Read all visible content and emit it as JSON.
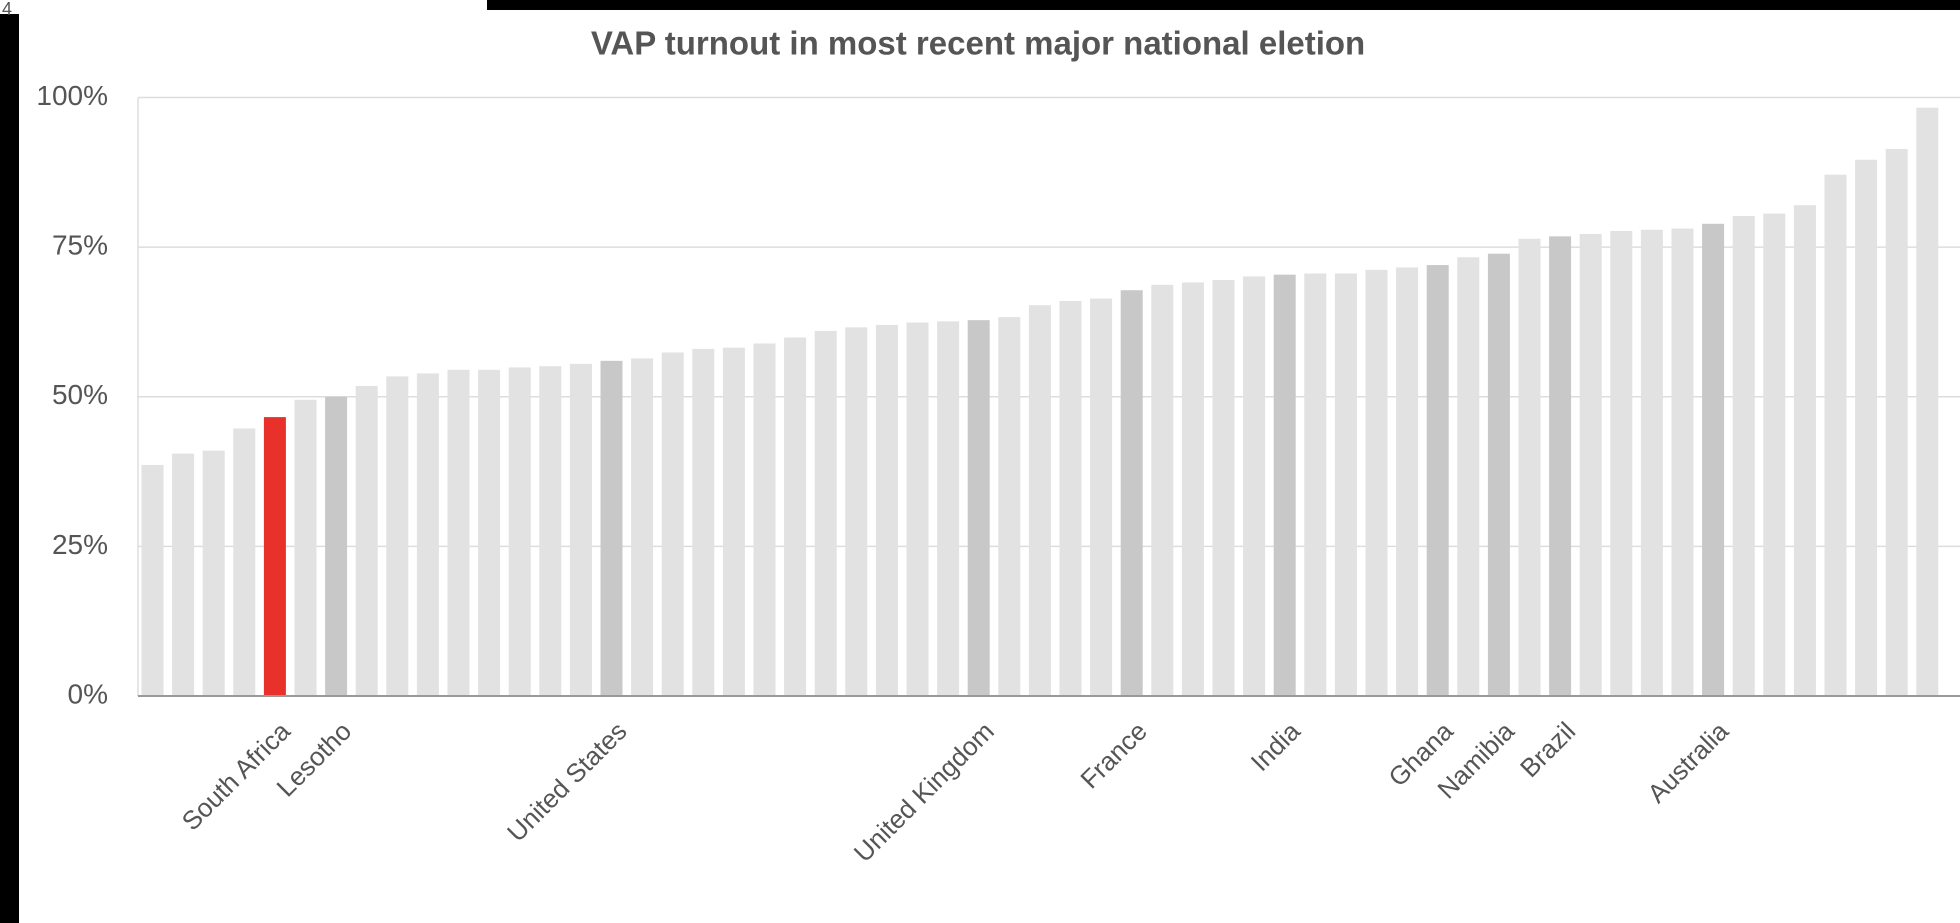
{
  "corner_text": "4",
  "chart_data": {
    "type": "bar",
    "title": "VAP turnout in most recent major national eletion",
    "categories": [
      null,
      null,
      null,
      null,
      "South Africa",
      null,
      "Lesotho",
      null,
      null,
      null,
      null,
      null,
      null,
      null,
      null,
      "United States",
      null,
      null,
      null,
      null,
      null,
      null,
      null,
      null,
      null,
      null,
      null,
      "United Kingdom",
      null,
      null,
      null,
      null,
      "France",
      null,
      null,
      null,
      null,
      "India",
      null,
      null,
      null,
      null,
      "Ghana",
      null,
      "Namibia",
      null,
      "Brazil",
      null,
      null,
      null,
      null,
      "Australia",
      null,
      null,
      null,
      null,
      null,
      null,
      null
    ],
    "values": [
      38.6,
      40.5,
      41,
      44.7,
      46.6,
      49.5,
      50,
      51.8,
      53.4,
      53.9,
      54.5,
      54.5,
      54.9,
      55.1,
      55.5,
      56,
      56.4,
      57.4,
      58,
      58.2,
      58.9,
      59.9,
      61,
      61.6,
      62,
      62.4,
      62.6,
      62.8,
      63.3,
      65.3,
      66,
      66.4,
      67.8,
      68.7,
      69.1,
      69.5,
      70.1,
      70.4,
      70.6,
      70.6,
      71.2,
      71.6,
      72,
      73.3,
      73.9,
      76.4,
      76.8,
      77.2,
      77.7,
      77.9,
      78.1,
      78.9,
      80.2,
      80.6,
      82,
      87.1,
      89.6,
      91.4,
      98.3
    ],
    "colors": [
      "#e2e2e2",
      "#e2e2e2",
      "#e2e2e2",
      "#e2e2e2",
      "#e8312a",
      "#e2e2e2",
      "#c8c8c8",
      "#e2e2e2",
      "#e2e2e2",
      "#e2e2e2",
      "#e2e2e2",
      "#e2e2e2",
      "#e2e2e2",
      "#e2e2e2",
      "#e2e2e2",
      "#c8c8c8",
      "#e2e2e2",
      "#e2e2e2",
      "#e2e2e2",
      "#e2e2e2",
      "#e2e2e2",
      "#e2e2e2",
      "#e2e2e2",
      "#e2e2e2",
      "#e2e2e2",
      "#e2e2e2",
      "#e2e2e2",
      "#c8c8c8",
      "#e2e2e2",
      "#e2e2e2",
      "#e2e2e2",
      "#e2e2e2",
      "#c8c8c8",
      "#e2e2e2",
      "#e2e2e2",
      "#e2e2e2",
      "#e2e2e2",
      "#c8c8c8",
      "#e2e2e2",
      "#e2e2e2",
      "#e2e2e2",
      "#e2e2e2",
      "#c8c8c8",
      "#e2e2e2",
      "#c8c8c8",
      "#e2e2e2",
      "#c8c8c8",
      "#e2e2e2",
      "#e2e2e2",
      "#e2e2e2",
      "#e2e2e2",
      "#c8c8c8",
      "#e2e2e2",
      "#e2e2e2",
      "#e2e2e2",
      "#e2e2e2",
      "#e2e2e2",
      "#e2e2e2",
      "#e2e2e2"
    ],
    "ylim": [
      0,
      100
    ],
    "yticks": [
      {
        "value": 0,
        "label": "0%"
      },
      {
        "value": 25,
        "label": "25%"
      },
      {
        "value": 50,
        "label": "50%"
      },
      {
        "value": 75,
        "label": "75%"
      },
      {
        "value": 100,
        "label": "100%"
      }
    ],
    "grid": true
  }
}
